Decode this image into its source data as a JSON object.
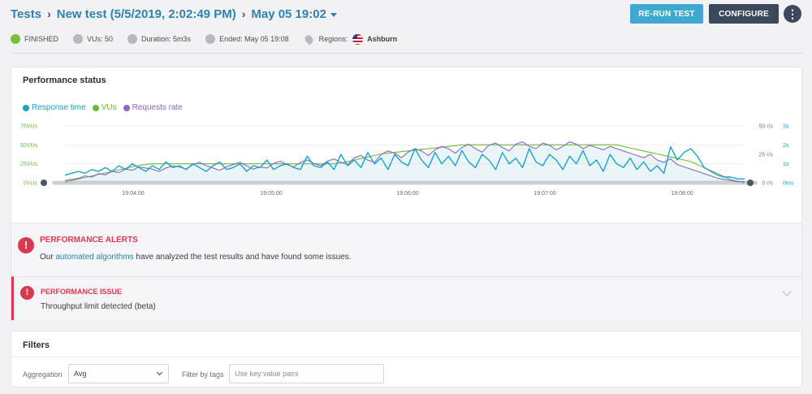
{
  "header": {
    "crumb_tests": "Tests",
    "crumb_test": "New test (5/5/2019, 2:02:49 PM)",
    "crumb_run": "May 05 19:02",
    "rerun_label": "RE-RUN TEST",
    "configure_label": "CONFIGURE",
    "more_label": "⋮"
  },
  "status": {
    "state": "FINISHED",
    "vus": "VUs: 50",
    "duration": "Duration: 5m3s",
    "ended": "Ended: May 05 19:08",
    "regions_label": "Regions:",
    "region": "Ashburn"
  },
  "performance": {
    "title": "Performance status",
    "legend": [
      {
        "name": "Response time",
        "color": "#1aa3c7"
      },
      {
        "name": "VUs",
        "color": "#6cb93a"
      },
      {
        "name": "Requests rate",
        "color": "#8b66c7"
      }
    ]
  },
  "chart_data": {
    "type": "line",
    "x_ticks": [
      "19:04:00",
      "19:05:00",
      "19:06:00",
      "19:07:00",
      "19:08:00"
    ],
    "left_axis": {
      "ticks": [
        "0VUs",
        "25VUs",
        "50VUs",
        "75VUs"
      ],
      "ylim": [
        0,
        75
      ]
    },
    "right_axis_rate": {
      "ticks": [
        "0 r/s",
        "25 r/s",
        "50 r/s"
      ],
      "ylim": [
        0,
        50
      ]
    },
    "right_axis_time": {
      "ticks": [
        "0ms",
        "1s",
        "2s",
        "3s"
      ],
      "ylim": [
        0,
        3
      ]
    },
    "series": [
      {
        "name": "VUs",
        "color": "#6cb93a",
        "axis": "left",
        "values": [
          1,
          3,
          5,
          7,
          9,
          11,
          13,
          15,
          17,
          19,
          21,
          23,
          24,
          25,
          25,
          25,
          25,
          25,
          25,
          25,
          25,
          25,
          25,
          25,
          25,
          25,
          25,
          25,
          25,
          25,
          25,
          25,
          25,
          25,
          25,
          25,
          25,
          25,
          25,
          25,
          25,
          26,
          28,
          30,
          32,
          34,
          36,
          38,
          39,
          40,
          41,
          42,
          43,
          44,
          45,
          46,
          47,
          48,
          49,
          50,
          50,
          50,
          50,
          50,
          50,
          50,
          50,
          50,
          50,
          50,
          50,
          50,
          50,
          50,
          50,
          50,
          50,
          50,
          50,
          50,
          50,
          50,
          50,
          48,
          46,
          44,
          42,
          40,
          38,
          36,
          34,
          32,
          30,
          28,
          24,
          20,
          16,
          12,
          8,
          4,
          2,
          0
        ]
      },
      {
        "name": "Requests rate",
        "color": "#8b66c7",
        "axis": "rate",
        "values": [
          2,
          3,
          4,
          6,
          5,
          8,
          7,
          10,
          9,
          12,
          11,
          14,
          13,
          12,
          10,
          13,
          15,
          14,
          12,
          16,
          18,
          15,
          13,
          11,
          14,
          16,
          18,
          15,
          12,
          14,
          13,
          17,
          19,
          16,
          14,
          18,
          20,
          17,
          15,
          19,
          21,
          18,
          16,
          22,
          24,
          20,
          18,
          25,
          28,
          26,
          22,
          27,
          30,
          28,
          24,
          29,
          32,
          30,
          26,
          31,
          34,
          30,
          27,
          33,
          35,
          31,
          28,
          34,
          36,
          32,
          30,
          35,
          33,
          29,
          32,
          36,
          34,
          30,
          33,
          31,
          29,
          32,
          30,
          28,
          26,
          24,
          22,
          25,
          20,
          18,
          21,
          16,
          14,
          12,
          10,
          8,
          6,
          4,
          3,
          2,
          1,
          1
        ]
      },
      {
        "name": "Response time",
        "color": "#1aa3c7",
        "axis": "time",
        "values": [
          0.4,
          0.5,
          0.6,
          0.5,
          0.7,
          0.6,
          0.8,
          0.6,
          0.9,
          0.7,
          1.0,
          0.8,
          0.6,
          0.9,
          0.7,
          1.1,
          0.8,
          0.9,
          0.7,
          1.0,
          0.8,
          0.6,
          0.9,
          1.1,
          0.7,
          0.8,
          1.0,
          0.6,
          0.9,
          0.8,
          1.2,
          0.7,
          0.9,
          1.0,
          0.8,
          0.7,
          1.4,
          0.9,
          0.8,
          1.1,
          0.7,
          1.5,
          0.9,
          1.2,
          0.8,
          1.6,
          1.0,
          1.3,
          0.7,
          1.5,
          1.1,
          0.9,
          1.8,
          1.2,
          0.8,
          1.6,
          1.0,
          1.4,
          0.9,
          1.7,
          1.1,
          0.8,
          1.5,
          1.2,
          0.7,
          1.6,
          1.0,
          1.3,
          0.8,
          1.8,
          1.1,
          0.9,
          1.5,
          1.2,
          0.7,
          1.4,
          1.0,
          1.7,
          0.9,
          1.2,
          0.6,
          1.5,
          1.0,
          0.8,
          1.3,
          0.7,
          1.1,
          0.6,
          0.9,
          0.5,
          1.9,
          1.2,
          1.6,
          1.8,
          1.4,
          0.8,
          0.6,
          0.4,
          0.3,
          0.3,
          0.2,
          0.2
        ]
      }
    ]
  },
  "alerts": {
    "title": "PERFORMANCE ALERTS",
    "text_prefix": "Our",
    "link": "automated algorithms",
    "text_suffix": "have analyzed the test results and have found some issues.",
    "icon": "!"
  },
  "issue": {
    "title": "PERFORMANCE ISSUE",
    "text": "Throughput limit detected (beta)",
    "icon": "!"
  },
  "filters": {
    "title": "Filters",
    "aggregation_label": "Aggregation",
    "aggregation_value": "Avg",
    "tags_label": "Filter by tags",
    "tags_placeholder": "Use key:value pairs"
  }
}
